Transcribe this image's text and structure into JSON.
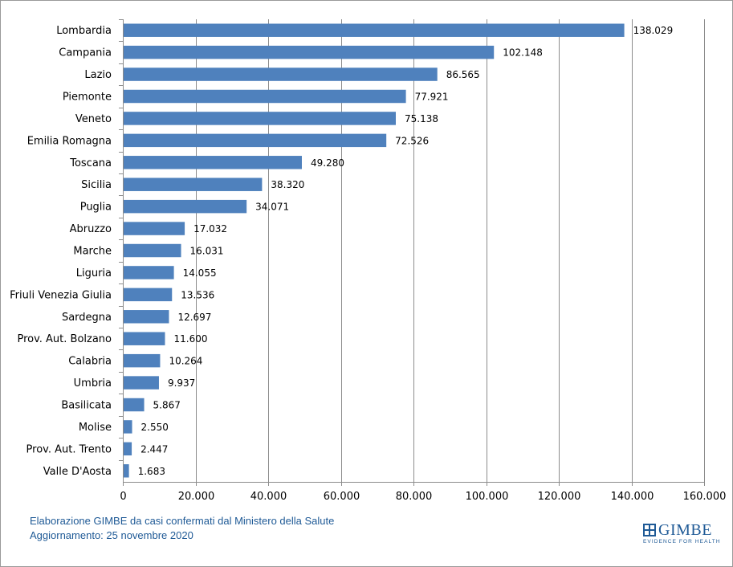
{
  "chart_data": {
    "type": "bar",
    "orientation": "horizontal",
    "categories": [
      "Lombardia",
      "Campania",
      "Lazio",
      "Piemonte",
      "Veneto",
      "Emilia Romagna",
      "Toscana",
      "Sicilia",
      "Puglia",
      "Abruzzo",
      "Marche",
      "Liguria",
      "Friuli Venezia Giulia",
      "Sardegna",
      "Prov. Aut. Bolzano",
      "Calabria",
      "Umbria",
      "Basilicata",
      "Molise",
      "Prov. Aut. Trento",
      "Valle D'Aosta"
    ],
    "values": [
      138029,
      102148,
      86565,
      77921,
      75138,
      72526,
      49280,
      38320,
      34071,
      17032,
      16031,
      14055,
      13536,
      12697,
      11600,
      10264,
      9937,
      5867,
      2550,
      2447,
      1683
    ],
    "value_labels": [
      "138.029",
      "102.148",
      "86.565",
      "77.921",
      "75.138",
      "72.526",
      "49.280",
      "38.320",
      "34.071",
      "17.032",
      "16.031",
      "14.055",
      "13.536",
      "12.697",
      "11.600",
      "10.264",
      "9.937",
      "5.867",
      "2.550",
      "2.447",
      "1.683"
    ],
    "xlim": [
      0,
      160000
    ],
    "x_ticks": [
      0,
      20000,
      40000,
      60000,
      80000,
      100000,
      120000,
      140000,
      160000
    ],
    "x_tick_labels": [
      "0",
      "20.000",
      "40.000",
      "60.000",
      "80.000",
      "100.000",
      "120.000",
      "140.000",
      "160.000"
    ],
    "grid": "vertical",
    "legend": "none",
    "title": "",
    "xlabel": "",
    "ylabel": "",
    "bar_color": "#4f81bd"
  },
  "footer": {
    "line1": "Elaborazione GIMBE da casi confermati dal Ministero della Salute",
    "line2": "Aggiornamento: 25 novembre 2020"
  },
  "logo": {
    "name": "GIMBE",
    "tagline": "EVIDENCE FOR HEALTH",
    "color": "#1f5a96"
  }
}
